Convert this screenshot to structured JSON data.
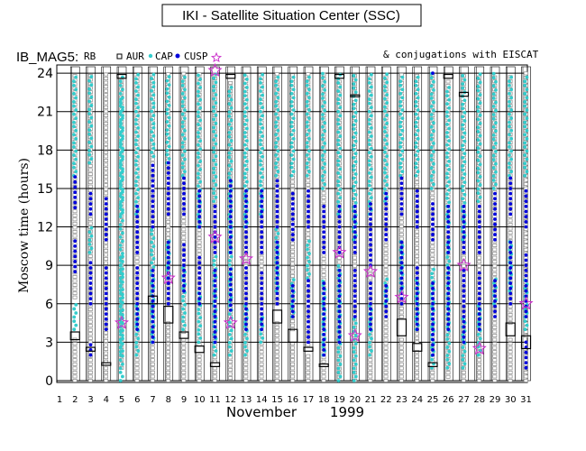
{
  "title": "IKI - Satellite Situation Center (SSC)",
  "header": {
    "instrument": "IB_MAG5:",
    "legend_rb": "RB",
    "legend_aur": "AUR",
    "legend_cap": "CAP",
    "legend_cusp": "CUSP",
    "conjugations": "& conjugations with EISCAT"
  },
  "colors": {
    "rb": "#888888",
    "aur": "#33cccc",
    "cap": "#33cccc",
    "cusp": "#0000dd",
    "eiscat": "#cc33cc"
  },
  "chart_data": {
    "type": "scatter",
    "ylabel": "Moscow time (hours)",
    "xlabel": "November 1999",
    "month_label": "November",
    "year_label": "1999",
    "ylim": [
      0,
      24.5
    ],
    "yticks": [
      0,
      3,
      6,
      9,
      12,
      15,
      18,
      21,
      24
    ],
    "xlim": [
      1,
      31
    ],
    "xticks": [
      "1",
      "2",
      "3",
      "4",
      "5",
      "6",
      "7",
      "8",
      "9",
      "10",
      "11",
      "12",
      "13",
      "14",
      "15",
      "16",
      "17",
      "18",
      "19",
      "20",
      "21",
      "22",
      "23",
      "24",
      "25",
      "26",
      "27",
      "28",
      "29",
      "30",
      "31"
    ],
    "grid": true,
    "days": [
      {
        "day": 2,
        "rb_ranges": [
          [
            0,
            3.4
          ],
          [
            6.5,
            24
          ]
        ],
        "aur_ranges": [
          [
            4,
            6
          ]
        ],
        "cap_ranges": [
          [
            16,
            24
          ]
        ],
        "cusp_ranges": [
          [
            8.5,
            11
          ],
          [
            13.5,
            16
          ]
        ],
        "box": [
          3.2,
          3.8
        ],
        "eiscat": []
      },
      {
        "day": 3,
        "rb_ranges": [
          [
            0,
            2.3
          ],
          [
            3,
            24
          ]
        ],
        "aur_ranges": [
          [
            10,
            12
          ]
        ],
        "cap_ranges": [
          [
            17,
            24
          ]
        ],
        "cusp_ranges": [
          [
            2,
            2.8
          ],
          [
            6,
            9.5
          ],
          [
            13,
            15
          ]
        ],
        "box": [
          2.3,
          2.6
        ],
        "eiscat": []
      },
      {
        "day": 4,
        "rb_ranges": [
          [
            0,
            1.2
          ],
          [
            1.5,
            24
          ]
        ],
        "aur_ranges": [],
        "cap_ranges": [],
        "cusp_ranges": [
          [
            4,
            9
          ],
          [
            11,
            14.5
          ]
        ],
        "box": [
          1.2,
          1.4
        ],
        "eiscat": []
      },
      {
        "day": 5,
        "rb_ranges": [
          [
            1,
            23.5
          ]
        ],
        "aur_ranges": [
          [
            2,
            10
          ],
          [
            13,
            22
          ]
        ],
        "cap_ranges": [
          [
            0,
            24
          ]
        ],
        "cusp_ranges": [],
        "box": [
          23.6,
          23.9
        ],
        "eiscat": [
          4.5
        ]
      },
      {
        "day": 6,
        "rb_ranges": [
          [
            0,
            24
          ]
        ],
        "aur_ranges": [
          [
            2,
            6
          ]
        ],
        "cap_ranges": [
          [
            13,
            24
          ]
        ],
        "cusp_ranges": [
          [
            4,
            9
          ],
          [
            10,
            14
          ]
        ],
        "box": [],
        "eiscat": []
      },
      {
        "day": 7,
        "rb_ranges": [
          [
            0,
            24
          ]
        ],
        "aur_ranges": [
          [
            3,
            6
          ]
        ],
        "cap_ranges": [
          [
            6,
            12
          ],
          [
            17.5,
            24
          ]
        ],
        "cusp_ranges": [
          [
            3,
            9
          ],
          [
            12,
            17
          ]
        ],
        "box": [
          6,
          6.6
        ],
        "eiscat": []
      },
      {
        "day": 8,
        "rb_ranges": [
          [
            0,
            4.5
          ],
          [
            6,
            24
          ]
        ],
        "aur_ranges": [
          [
            8,
            11
          ]
        ],
        "cap_ranges": [
          [
            17,
            24
          ]
        ],
        "cusp_ranges": [
          [
            6,
            11
          ],
          [
            13,
            17
          ]
        ],
        "box": [
          4.5,
          5.8
        ],
        "eiscat": [
          8
        ]
      },
      {
        "day": 9,
        "rb_ranges": [
          [
            0,
            3.3
          ],
          [
            3.8,
            24
          ]
        ],
        "aur_ranges": [
          [
            4,
            9
          ]
        ],
        "cap_ranges": [
          [
            16,
            24
          ]
        ],
        "cusp_ranges": [
          [
            7,
            11
          ],
          [
            13,
            16
          ]
        ],
        "box": [
          3.3,
          3.8
        ],
        "eiscat": []
      },
      {
        "day": 10,
        "rb_ranges": [
          [
            0,
            2.2
          ],
          [
            2.8,
            24
          ]
        ],
        "aur_ranges": [
          [
            3,
            7
          ]
        ],
        "cap_ranges": [
          [
            12,
            24
          ]
        ],
        "cusp_ranges": [
          [
            6,
            10
          ],
          [
            12,
            15
          ]
        ],
        "box": [
          2.2,
          2.7
        ],
        "eiscat": []
      },
      {
        "day": 11,
        "rb_ranges": [
          [
            0,
            1
          ],
          [
            1.5,
            24
          ]
        ],
        "aur_ranges": [
          [
            2,
            10
          ]
        ],
        "cap_ranges": [
          [
            14,
            24
          ]
        ],
        "cusp_ranges": [
          [
            3,
            9
          ],
          [
            10,
            14
          ]
        ],
        "box": [
          1.1,
          1.4
        ],
        "eiscat": [
          11.2,
          24.2
        ]
      },
      {
        "day": 12,
        "rb_ranges": [
          [
            0.2,
            23.5
          ]
        ],
        "aur_ranges": [
          [
            2,
            12
          ]
        ],
        "cap_ranges": [
          [
            12,
            23
          ]
        ],
        "cusp_ranges": [
          [
            5.5,
            9
          ],
          [
            10,
            16
          ]
        ],
        "box": [
          23.6,
          23.9
        ],
        "eiscat": [
          4.5
        ]
      },
      {
        "day": 13,
        "rb_ranges": [
          [
            0,
            24
          ]
        ],
        "aur_ranges": [
          [
            2,
            6
          ]
        ],
        "cap_ranges": [
          [
            12,
            24
          ]
        ],
        "cusp_ranges": [
          [
            4,
            9
          ],
          [
            10,
            15
          ]
        ],
        "box": [],
        "eiscat": [
          9.5
        ]
      },
      {
        "day": 14,
        "rb_ranges": [
          [
            0,
            24
          ]
        ],
        "aur_ranges": [
          [
            3,
            5
          ]
        ],
        "cap_ranges": [
          [
            13,
            24
          ]
        ],
        "cusp_ranges": [
          [
            4,
            8.5
          ],
          [
            10,
            15
          ]
        ],
        "box": [],
        "eiscat": []
      },
      {
        "day": 15,
        "rb_ranges": [
          [
            0,
            4.5
          ],
          [
            6,
            24
          ]
        ],
        "aur_ranges": [
          [
            7,
            12
          ]
        ],
        "cap_ranges": [
          [
            16,
            24
          ]
        ],
        "cusp_ranges": [
          [
            6,
            11
          ],
          [
            12,
            16
          ]
        ],
        "box": [
          4.5,
          5.5
        ],
        "eiscat": []
      },
      {
        "day": 16,
        "rb_ranges": [
          [
            0,
            3
          ],
          [
            4,
            24
          ]
        ],
        "aur_ranges": [
          [
            5,
            8
          ]
        ],
        "cap_ranges": [
          [
            16,
            24
          ]
        ],
        "cusp_ranges": [
          [
            5,
            7.5
          ],
          [
            11,
            15
          ]
        ],
        "box": [
          3,
          4
        ],
        "eiscat": []
      },
      {
        "day": 17,
        "rb_ranges": [
          [
            0,
            2.2
          ],
          [
            2.8,
            24
          ]
        ],
        "aur_ranges": [
          [
            8,
            11
          ]
        ],
        "cap_ranges": [
          [
            16,
            24
          ]
        ],
        "cusp_ranges": [
          [
            3,
            8
          ],
          [
            12,
            15
          ]
        ],
        "box": [
          2.3,
          2.6
        ],
        "eiscat": []
      },
      {
        "day": 18,
        "rb_ranges": [
          [
            0,
            1
          ],
          [
            1.5,
            24
          ]
        ],
        "aur_ranges": [
          [
            2,
            8
          ]
        ],
        "cap_ranges": [
          [
            15,
            24
          ]
        ],
        "cusp_ranges": [
          [
            2,
            8
          ],
          [
            10,
            14
          ]
        ],
        "box": [
          1.1,
          1.3
        ],
        "eiscat": []
      },
      {
        "day": 19,
        "rb_ranges": [
          [
            0.3,
            23.5
          ]
        ],
        "aur_ranges": [
          [
            0,
            9
          ]
        ],
        "cap_ranges": [
          [
            13,
            24
          ]
        ],
        "cusp_ranges": [
          [
            3,
            9
          ],
          [
            10,
            14
          ]
        ],
        "box": [
          23.6,
          23.9
        ],
        "eiscat": [
          10
        ]
      },
      {
        "day": 20,
        "rb_ranges": [
          [
            0,
            22
          ],
          [
            22.5,
            24
          ]
        ],
        "aur_ranges": [
          [
            0,
            5
          ]
        ],
        "cap_ranges": [
          [
            11,
            24
          ]
        ],
        "cusp_ranges": [
          [
            5,
            9
          ],
          [
            10,
            14
          ]
        ],
        "box": [
          22.2,
          22.3
        ],
        "eiscat": [
          3.5
        ]
      },
      {
        "day": 21,
        "rb_ranges": [
          [
            0,
            24
          ]
        ],
        "aur_ranges": [
          [
            2,
            6
          ]
        ],
        "cap_ranges": [
          [
            13,
            24
          ]
        ],
        "cusp_ranges": [
          [
            4,
            8
          ],
          [
            9,
            14
          ]
        ],
        "box": [],
        "eiscat": [
          8.5
        ]
      },
      {
        "day": 22,
        "rb_ranges": [
          [
            0,
            24
          ]
        ],
        "aur_ranges": [
          [
            6,
            8
          ]
        ],
        "cap_ranges": [
          [
            14,
            24
          ]
        ],
        "cusp_ranges": [
          [
            5,
            7.5
          ],
          [
            11,
            15
          ]
        ],
        "box": [],
        "eiscat": []
      },
      {
        "day": 23,
        "rb_ranges": [
          [
            0,
            3.5
          ],
          [
            5,
            24
          ]
        ],
        "aur_ranges": [
          [
            7,
            11
          ]
        ],
        "cap_ranges": [
          [
            16,
            24
          ]
        ],
        "cusp_ranges": [
          [
            6,
            11
          ],
          [
            13,
            16
          ]
        ],
        "box": [
          3.5,
          4.8
        ],
        "eiscat": [
          6.5
        ]
      },
      {
        "day": 24,
        "rb_ranges": [
          [
            0,
            2.3
          ],
          [
            3,
            24
          ]
        ],
        "aur_ranges": [
          [
            4,
            8
          ]
        ],
        "cap_ranges": [
          [
            16,
            24
          ]
        ],
        "cusp_ranges": [
          [
            4,
            9
          ],
          [
            12,
            15
          ]
        ],
        "box": [
          2.3,
          2.9
        ],
        "eiscat": []
      },
      {
        "day": 25,
        "rb_ranges": [
          [
            0,
            1
          ],
          [
            1.5,
            24
          ]
        ],
        "aur_ranges": [
          [
            1,
            9
          ]
        ],
        "cap_ranges": [
          [
            15,
            24
          ]
        ],
        "cusp_ranges": [
          [
            2,
            8
          ],
          [
            11,
            14
          ],
          [
            24,
            24.3
          ]
        ],
        "box": [
          1.1,
          1.4
        ],
        "eiscat": []
      },
      {
        "day": 26,
        "rb_ranges": [
          [
            0.3,
            23.5
          ]
        ],
        "aur_ranges": [
          [
            1,
            11
          ]
        ],
        "cap_ranges": [
          [
            12,
            23
          ]
        ],
        "cusp_ranges": [
          [
            4,
            9
          ],
          [
            10,
            14
          ]
        ],
        "box": [
          23.6,
          23.9
        ],
        "eiscat": []
      },
      {
        "day": 27,
        "rb_ranges": [
          [
            0,
            22
          ],
          [
            22.5,
            24
          ]
        ],
        "aur_ranges": [
          [
            1,
            5
          ]
        ],
        "cap_ranges": [
          [
            11,
            24
          ]
        ],
        "cusp_ranges": [
          [
            3,
            9
          ],
          [
            10,
            14
          ]
        ],
        "box": [
          22.2,
          22.5
        ],
        "eiscat": [
          9
        ]
      },
      {
        "day": 28,
        "rb_ranges": [
          [
            0,
            24
          ]
        ],
        "aur_ranges": [
          [
            2,
            6
          ]
        ],
        "cap_ranges": [
          [
            14,
            24
          ]
        ],
        "cusp_ranges": [
          [
            4,
            8.5
          ],
          [
            10,
            14
          ]
        ],
        "box": [],
        "eiscat": [
          2.5
        ]
      },
      {
        "day": 29,
        "rb_ranges": [
          [
            0,
            24
          ]
        ],
        "aur_ranges": [
          [
            6,
            8
          ]
        ],
        "cap_ranges": [
          [
            15,
            24
          ]
        ],
        "cusp_ranges": [
          [
            5,
            8
          ],
          [
            11,
            15
          ]
        ],
        "box": [],
        "eiscat": []
      },
      {
        "day": 30,
        "rb_ranges": [
          [
            0,
            3.5
          ],
          [
            4.5,
            24
          ]
        ],
        "aur_ranges": [
          [
            7,
            11
          ]
        ],
        "cap_ranges": [
          [
            16,
            24
          ]
        ],
        "cusp_ranges": [
          [
            6,
            11
          ],
          [
            13,
            16
          ]
        ],
        "box": [
          3.5,
          4.5
        ],
        "eiscat": []
      },
      {
        "day": 31,
        "rb_ranges": [
          [
            0,
            2.5
          ],
          [
            3.5,
            24
          ]
        ],
        "aur_ranges": [
          [
            4,
            8
          ]
        ],
        "cap_ranges": [
          [
            16,
            24
          ]
        ],
        "cusp_ranges": [
          [
            1,
            3
          ],
          [
            5,
            10
          ],
          [
            12,
            15
          ]
        ],
        "box": [
          2.5,
          3.5
        ],
        "eiscat": [
          6
        ]
      }
    ]
  }
}
